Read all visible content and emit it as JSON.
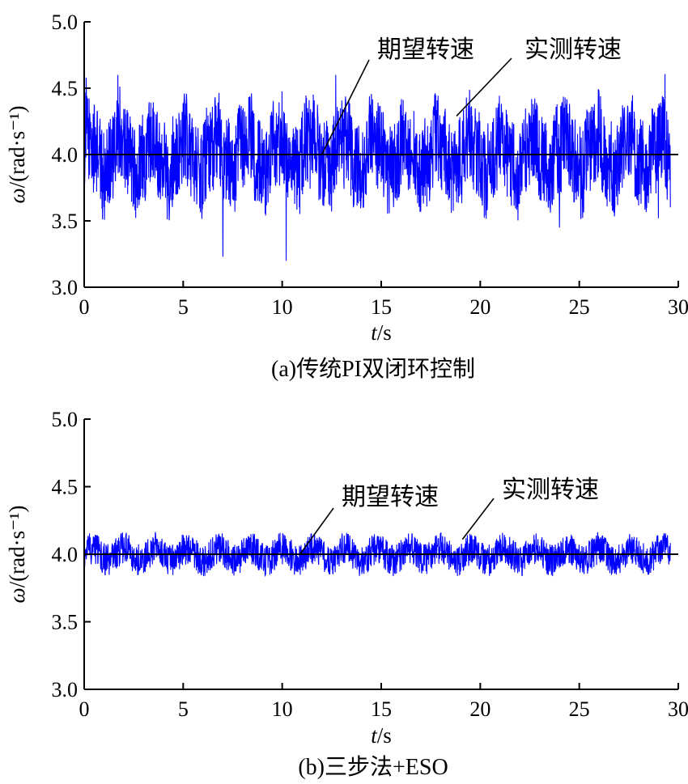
{
  "chart_data": [
    {
      "type": "line",
      "caption": "(a)传统PI双闭环控制",
      "xlabel": "t/s",
      "ylabel": "ω/(rad·s⁻¹)",
      "xlim": [
        0,
        30
      ],
      "ylim": [
        3.0,
        5.0
      ],
      "x_ticks": [
        "0",
        "5",
        "10",
        "15",
        "20",
        "25",
        "30"
      ],
      "y_ticks": [
        "3.0",
        "3.5",
        "4.0",
        "4.5",
        "5.0"
      ],
      "grid": false,
      "series": [
        {
          "name": "期望转速",
          "color": "#000000",
          "x": [
            0,
            30
          ],
          "y": [
            4.0,
            4.0
          ]
        },
        {
          "name": "实测转速",
          "color": "#0000ff",
          "x_range": [
            0,
            29.6
          ],
          "mean": 4.0,
          "oscillation_period": 1.6,
          "typical_range": [
            3.6,
            4.4
          ],
          "peaks": [
            [
              0.1,
              4.58
            ],
            [
              1.7,
              4.6
            ],
            [
              12.7,
              4.6
            ],
            [
              24.0,
              4.58
            ]
          ],
          "troughs": [
            [
              7.0,
              3.23
            ],
            [
              10.2,
              3.2
            ],
            [
              24.0,
              3.45
            ],
            [
              29.0,
              3.52
            ]
          ]
        }
      ],
      "annotations": [
        {
          "text": "期望转速",
          "x": 12.0,
          "y": 4.0
        },
        {
          "text": "实测转速",
          "x": 18.8,
          "y": 4.29
        }
      ]
    },
    {
      "type": "line",
      "caption": "(b)三步法+ESO",
      "xlabel": "t/s",
      "ylabel": "ω/(rad·s⁻¹)",
      "xlim": [
        0,
        30
      ],
      "ylim": [
        3.0,
        5.0
      ],
      "x_ticks": [
        "0",
        "5",
        "10",
        "15",
        "20",
        "25",
        "30"
      ],
      "y_ticks": [
        "3.0",
        "3.5",
        "4.0",
        "4.5",
        "5.0"
      ],
      "grid": false,
      "series": [
        {
          "name": "期望转速",
          "color": "#000000",
          "x": [
            0,
            30
          ],
          "y": [
            4.0,
            4.0
          ]
        },
        {
          "name": "实测转速",
          "color": "#0000ff",
          "x_range": [
            0,
            29.6
          ],
          "mean": 4.0,
          "oscillation_period": 1.6,
          "typical_range": [
            3.85,
            4.17
          ]
        }
      ],
      "annotations": [
        {
          "text": "期望转速",
          "x": 10.9,
          "y": 4.0
        },
        {
          "text": "实测转速",
          "x": 19.1,
          "y": 4.11
        }
      ]
    }
  ]
}
